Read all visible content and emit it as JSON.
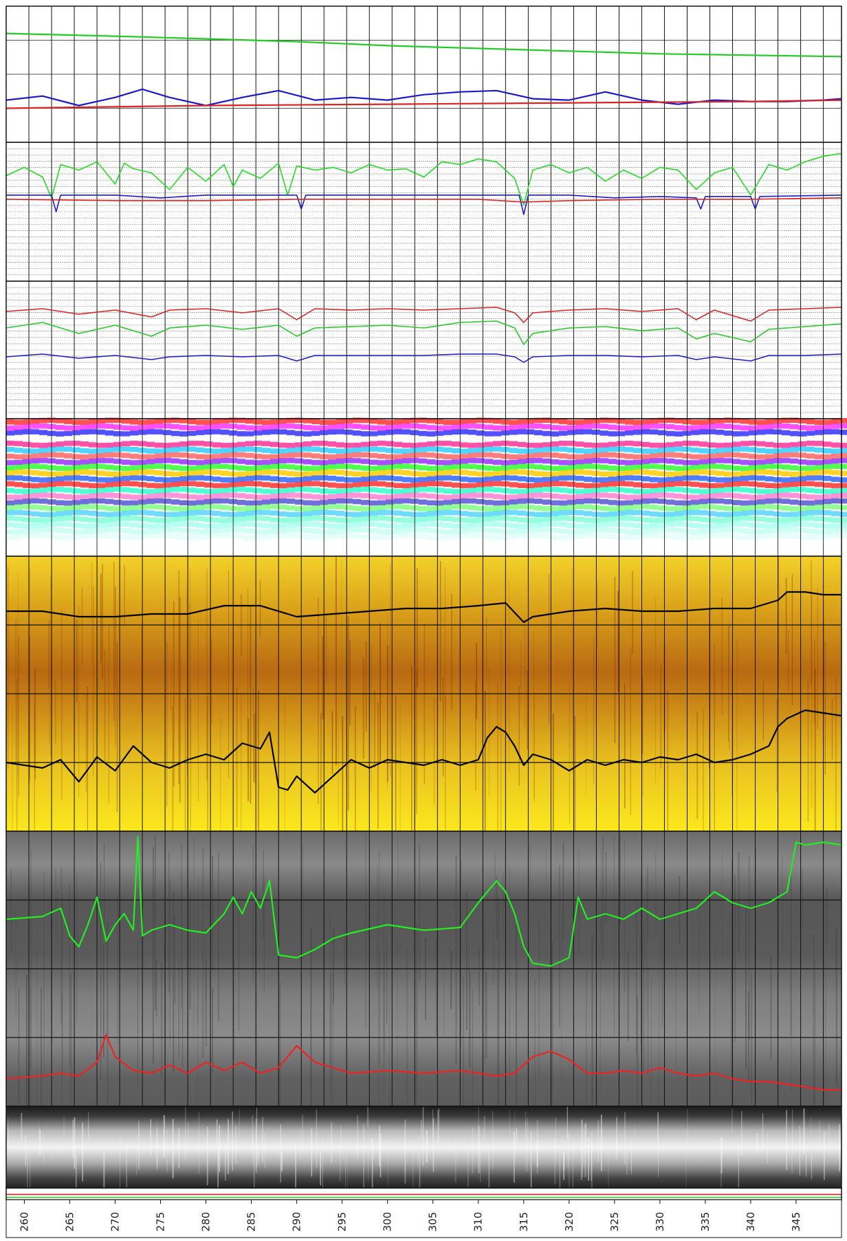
{
  "chart_data": {
    "type": "line",
    "x_axis": {
      "range": [
        258,
        350
      ],
      "tick_labels": [
        "260",
        "265",
        "270",
        "275",
        "280",
        "285",
        "290",
        "295",
        "300",
        "305",
        "310",
        "315",
        "320",
        "325",
        "330",
        "335",
        "340",
        "345"
      ],
      "tick_values": [
        260,
        265,
        270,
        275,
        280,
        285,
        290,
        295,
        300,
        305,
        310,
        315,
        320,
        325,
        330,
        335,
        340,
        345
      ],
      "grid_spacing": 2.5,
      "orientation": "vertical-text"
    },
    "tracks": [
      {
        "id": "track-1",
        "kind": "lines",
        "background": "#ffffff",
        "series": [
          {
            "color": "#22cc22",
            "x": [
              258,
              270,
              280,
              290,
              300,
              310,
              320,
              330,
              340,
              350
            ],
            "y": [
              0.8,
              0.78,
              0.76,
              0.74,
              0.71,
              0.69,
              0.67,
              0.65,
              0.64,
              0.63
            ]
          },
          {
            "color": "#1a1acc",
            "x": [
              258,
              262,
              266,
              270,
              273,
              276,
              280,
              284,
              288,
              292,
              296,
              300,
              304,
              308,
              312,
              316,
              320,
              324,
              328,
              332,
              336,
              340,
              344,
              348,
              350
            ],
            "y": [
              0.31,
              0.34,
              0.27,
              0.33,
              0.39,
              0.33,
              0.27,
              0.33,
              0.38,
              0.31,
              0.33,
              0.31,
              0.35,
              0.37,
              0.38,
              0.32,
              0.31,
              0.37,
              0.31,
              0.28,
              0.31,
              0.3,
              0.3,
              0.31,
              0.32
            ]
          },
          {
            "color": "#dd2222",
            "x": [
              258,
              280,
              300,
              320,
              340,
              350
            ],
            "y": [
              0.25,
              0.27,
              0.28,
              0.29,
              0.3,
              0.31
            ]
          }
        ]
      },
      {
        "id": "track-2",
        "kind": "lines",
        "background": "#ffffff",
        "series": [
          {
            "color": "#22dd22",
            "x": [
              258,
              260,
              262,
              263,
              264,
              266,
              268,
              270,
              271,
              272,
              274,
              276,
              278,
              280,
              282,
              283,
              284,
              286,
              288,
              289,
              290,
              292,
              294,
              296,
              298,
              300,
              302,
              304,
              306,
              308,
              310,
              312,
              314,
              315,
              316,
              318,
              320,
              322,
              324,
              326,
              328,
              330,
              332,
              334,
              336,
              338,
              340,
              342,
              344,
              346,
              348,
              350
            ],
            "y": [
              0.76,
              0.82,
              0.75,
              0.6,
              0.84,
              0.8,
              0.86,
              0.7,
              0.85,
              0.81,
              0.78,
              0.66,
              0.82,
              0.72,
              0.84,
              0.68,
              0.8,
              0.74,
              0.85,
              0.62,
              0.83,
              0.8,
              0.82,
              0.78,
              0.84,
              0.8,
              0.81,
              0.75,
              0.86,
              0.84,
              0.88,
              0.86,
              0.74,
              0.55,
              0.8,
              0.84,
              0.78,
              0.82,
              0.72,
              0.8,
              0.74,
              0.82,
              0.8,
              0.66,
              0.78,
              0.82,
              0.62,
              0.84,
              0.8,
              0.86,
              0.9,
              0.92
            ]
          },
          {
            "color": "#1a1acc",
            "x": [
              258,
              263,
              263.5,
              264,
              270,
              275,
              280,
              285,
              290,
              290.5,
              291,
              300,
              310,
              314.5,
              315,
              315.5,
              320,
              325,
              330,
              334,
              334.5,
              335,
              340,
              340.5,
              341,
              350
            ],
            "y": [
              0.62,
              0.62,
              0.5,
              0.62,
              0.62,
              0.6,
              0.62,
              0.62,
              0.62,
              0.52,
              0.62,
              0.62,
              0.62,
              0.62,
              0.48,
              0.62,
              0.62,
              0.6,
              0.61,
              0.6,
              0.52,
              0.61,
              0.61,
              0.52,
              0.61,
              0.62
            ]
          },
          {
            "color": "#dd2222",
            "x": [
              258,
              270,
              280,
              290,
              300,
              310,
              315,
              320,
              330,
              340,
              350
            ],
            "y": [
              0.59,
              0.58,
              0.58,
              0.59,
              0.59,
              0.59,
              0.57,
              0.58,
              0.59,
              0.59,
              0.6
            ]
          }
        ]
      },
      {
        "id": "track-3",
        "kind": "lines",
        "background": "#ffffff",
        "series": [
          {
            "color": "#dd2222",
            "x": [
              258,
              262,
              266,
              270,
              274,
              276,
              280,
              284,
              288,
              290,
              292,
              296,
              300,
              304,
              308,
              312,
              314,
              315,
              316,
              320,
              324,
              328,
              332,
              334,
              336,
              340,
              342,
              346,
              350
            ],
            "y": [
              0.78,
              0.8,
              0.76,
              0.79,
              0.74,
              0.79,
              0.8,
              0.77,
              0.8,
              0.72,
              0.8,
              0.79,
              0.8,
              0.79,
              0.8,
              0.81,
              0.77,
              0.7,
              0.77,
              0.79,
              0.8,
              0.78,
              0.8,
              0.72,
              0.79,
              0.71,
              0.79,
              0.8,
              0.81
            ]
          },
          {
            "color": "#22cc22",
            "x": [
              258,
              262,
              266,
              270,
              274,
              276,
              280,
              284,
              288,
              290,
              292,
              296,
              300,
              304,
              308,
              312,
              314,
              315,
              316,
              320,
              324,
              328,
              332,
              334,
              336,
              340,
              342,
              346,
              350
            ],
            "y": [
              0.66,
              0.7,
              0.62,
              0.68,
              0.6,
              0.66,
              0.68,
              0.65,
              0.68,
              0.6,
              0.66,
              0.67,
              0.68,
              0.66,
              0.7,
              0.71,
              0.66,
              0.54,
              0.62,
              0.66,
              0.67,
              0.64,
              0.66,
              0.58,
              0.62,
              0.56,
              0.65,
              0.67,
              0.69
            ]
          },
          {
            "color": "#1a1acc",
            "x": [
              258,
              262,
              266,
              270,
              274,
              276,
              280,
              284,
              288,
              290,
              292,
              296,
              300,
              304,
              308,
              312,
              314,
              315,
              316,
              320,
              324,
              328,
              332,
              334,
              336,
              340,
              342,
              346,
              350
            ],
            "y": [
              0.45,
              0.47,
              0.44,
              0.46,
              0.43,
              0.45,
              0.46,
              0.45,
              0.46,
              0.42,
              0.46,
              0.46,
              0.46,
              0.46,
              0.47,
              0.47,
              0.45,
              0.41,
              0.45,
              0.46,
              0.46,
              0.45,
              0.46,
              0.43,
              0.45,
              0.42,
              0.46,
              0.46,
              0.47
            ]
          }
        ]
      },
      {
        "id": "track-4",
        "kind": "spectral",
        "band_colors": [
          "#ff3333",
          "#ff33ff",
          "#3333ff",
          "#ffffff",
          "#ff3399",
          "#33ccff",
          "#ff6666",
          "#9933ff",
          "#33ff33",
          "#ffcc00",
          "#3366ff",
          "#ff3333",
          "#33ffcc",
          "#ff66cc",
          "#3333cc",
          "#66ff66",
          "#33ccff",
          "#66ffcc",
          "#99ffee",
          "#bbfff0",
          "#ddfff8"
        ],
        "series": []
      },
      {
        "id": "track-5",
        "kind": "image",
        "palette": "yellow",
        "series": [
          {
            "color": "#000000",
            "x": [
              258,
              262,
              266,
              270,
              274,
              278,
              282,
              286,
              290,
              294,
              298,
              302,
              306,
              310,
              313,
              315,
              316,
              320,
              324,
              328,
              332,
              336,
              340,
              343,
              344,
              346,
              348,
              350
            ],
            "y": [
              0.8,
              0.8,
              0.78,
              0.78,
              0.79,
              0.79,
              0.82,
              0.82,
              0.78,
              0.79,
              0.8,
              0.81,
              0.81,
              0.82,
              0.83,
              0.76,
              0.78,
              0.8,
              0.81,
              0.8,
              0.8,
              0.81,
              0.81,
              0.84,
              0.87,
              0.87,
              0.86,
              0.86
            ]
          },
          {
            "color": "#000000",
            "x": [
              258,
              262,
              264,
              266,
              268,
              270,
              272,
              274,
              276,
              278,
              280,
              282,
              284,
              286,
              287,
              288,
              289,
              290,
              292,
              294,
              296,
              298,
              300,
              302,
              304,
              306,
              308,
              310,
              311,
              312,
              313,
              314,
              315,
              316,
              318,
              320,
              322,
              324,
              326,
              328,
              330,
              332,
              334,
              336,
              338,
              340,
              342,
              343,
              344,
              346,
              348,
              350
            ],
            "y": [
              0.25,
              0.23,
              0.26,
              0.18,
              0.27,
              0.22,
              0.31,
              0.25,
              0.23,
              0.26,
              0.28,
              0.26,
              0.32,
              0.3,
              0.36,
              0.16,
              0.15,
              0.2,
              0.14,
              0.2,
              0.26,
              0.23,
              0.26,
              0.25,
              0.24,
              0.26,
              0.24,
              0.26,
              0.34,
              0.38,
              0.36,
              0.31,
              0.24,
              0.28,
              0.26,
              0.22,
              0.26,
              0.24,
              0.26,
              0.25,
              0.27,
              0.26,
              0.28,
              0.25,
              0.26,
              0.28,
              0.31,
              0.38,
              0.41,
              0.44,
              0.43,
              0.42
            ]
          }
        ]
      },
      {
        "id": "track-6",
        "kind": "image",
        "palette": "gray",
        "series": [
          {
            "color": "#22ee22",
            "x": [
              258,
              262,
              264,
              265,
              266,
              267,
              268,
              269,
              270,
              271,
              272,
              272.5,
              273,
              274,
              276,
              278,
              280,
              282,
              283,
              284,
              285,
              286,
              287,
              288,
              290,
              292,
              294,
              296,
              300,
              304,
              308,
              310,
              312,
              313,
              314,
              315,
              316,
              318,
              320,
              321,
              322,
              324,
              326,
              328,
              330,
              332,
              334,
              336,
              338,
              340,
              342,
              344,
              345,
              346,
              348,
              350
            ],
            "y": [
              0.68,
              0.69,
              0.72,
              0.62,
              0.58,
              0.66,
              0.76,
              0.6,
              0.66,
              0.7,
              0.64,
              0.98,
              0.62,
              0.64,
              0.66,
              0.64,
              0.63,
              0.7,
              0.76,
              0.7,
              0.78,
              0.72,
              0.82,
              0.55,
              0.54,
              0.57,
              0.61,
              0.63,
              0.66,
              0.64,
              0.65,
              0.74,
              0.82,
              0.78,
              0.7,
              0.58,
              0.52,
              0.51,
              0.54,
              0.76,
              0.68,
              0.7,
              0.68,
              0.72,
              0.68,
              0.7,
              0.72,
              0.78,
              0.74,
              0.72,
              0.74,
              0.78,
              0.96,
              0.95,
              0.96,
              0.95
            ]
          },
          {
            "color": "#ee2222",
            "x": [
              258,
              262,
              264,
              266,
              268,
              269,
              270,
              272,
              274,
              276,
              278,
              280,
              282,
              284,
              286,
              288,
              290,
              292,
              294,
              296,
              300,
              304,
              308,
              310,
              312,
              314,
              316,
              318,
              320,
              322,
              324,
              326,
              328,
              330,
              332,
              334,
              336,
              338,
              340,
              342,
              344,
              346,
              348,
              350
            ],
            "y": [
              0.1,
              0.11,
              0.12,
              0.11,
              0.16,
              0.26,
              0.18,
              0.13,
              0.12,
              0.15,
              0.12,
              0.16,
              0.13,
              0.16,
              0.12,
              0.14,
              0.22,
              0.16,
              0.14,
              0.12,
              0.13,
              0.12,
              0.13,
              0.12,
              0.11,
              0.12,
              0.18,
              0.2,
              0.17,
              0.12,
              0.12,
              0.13,
              0.12,
              0.14,
              0.12,
              0.11,
              0.12,
              0.1,
              0.09,
              0.09,
              0.08,
              0.07,
              0.06,
              0.06
            ]
          }
        ]
      },
      {
        "id": "track-7",
        "kind": "image",
        "palette": "gray-banded",
        "series": []
      },
      {
        "id": "track-8",
        "kind": "lines",
        "background": "#ffffff",
        "series": [
          {
            "color": "#22cc22",
            "x": [
              258,
              350
            ],
            "y": [
              0.2,
              0.2
            ]
          },
          {
            "color": "#dd2222",
            "x": [
              258,
              350
            ],
            "y": [
              0.45,
              0.45
            ]
          }
        ]
      }
    ]
  }
}
